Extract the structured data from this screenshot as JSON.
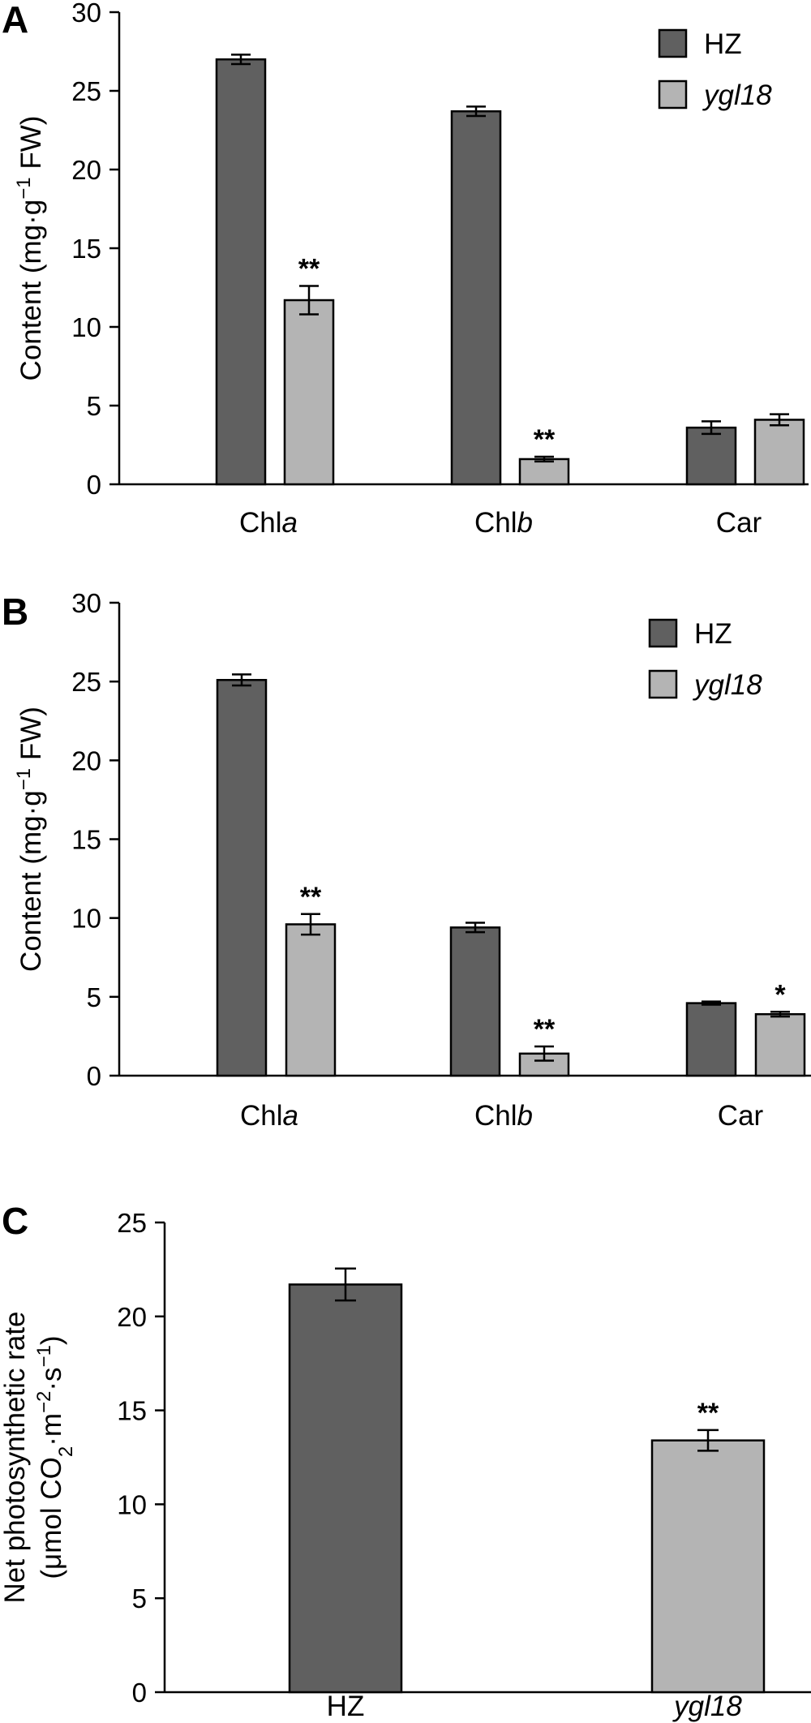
{
  "colors": {
    "HZ": "#606060",
    "ygl18": "#b4b4b4"
  },
  "chart_data": [
    {
      "panel": "A",
      "type": "bar",
      "ylabel": "Content (mg·g⁻¹ FW)",
      "ylabel_parts": [
        "Content (mg·g",
        "−1",
        " FW)"
      ],
      "ylim": [
        0,
        30
      ],
      "yticks": [
        0,
        5,
        10,
        15,
        20,
        25,
        30
      ],
      "categories": [
        "Chla",
        "Chlb",
        "Car"
      ],
      "category_labels": [
        [
          "Chl",
          "a"
        ],
        [
          "Chl",
          "b"
        ],
        [
          "Car",
          ""
        ]
      ],
      "legend_position": "top-right",
      "series": [
        {
          "name": "HZ",
          "values": [
            27.0,
            23.7,
            3.6
          ],
          "errors": [
            0.3,
            0.3,
            0.4
          ],
          "sig": [
            "",
            "",
            ""
          ]
        },
        {
          "name": "ygl18",
          "values": [
            11.7,
            1.6,
            4.1
          ],
          "errors": [
            0.9,
            0.15,
            0.35
          ],
          "sig": [
            "**",
            "**",
            ""
          ]
        }
      ]
    },
    {
      "panel": "B",
      "type": "bar",
      "ylabel": "Content (mg·g⁻¹ FW)",
      "ylabel_parts": [
        "Content (mg·g",
        "−1",
        " FW)"
      ],
      "ylim": [
        0,
        30
      ],
      "yticks": [
        0,
        5,
        10,
        15,
        20,
        25,
        30
      ],
      "categories": [
        "Chla",
        "Chlb",
        "Car"
      ],
      "category_labels": [
        [
          "Chl",
          "a"
        ],
        [
          "Chl",
          "b"
        ],
        [
          "Car",
          ""
        ]
      ],
      "legend_position": "top-right",
      "series": [
        {
          "name": "HZ",
          "values": [
            25.1,
            9.4,
            4.6
          ],
          "errors": [
            0.35,
            0.3,
            0.1
          ],
          "sig": [
            "",
            "",
            ""
          ]
        },
        {
          "name": "ygl18",
          "values": [
            9.6,
            1.4,
            3.9
          ],
          "errors": [
            0.65,
            0.45,
            0.15
          ],
          "sig": [
            "**",
            "**",
            "*"
          ]
        }
      ]
    },
    {
      "panel": "C",
      "type": "bar",
      "ylabel": "Net photosynthetic rate (μmol CO₂·m⁻²·s⁻¹)",
      "ylabel_line1": "Net photosynthetic rate",
      "ylabel_line2_parts": [
        "(μmol CO",
        "2",
        "·m",
        "−2",
        "·s",
        "−1",
        ")"
      ],
      "ylim": [
        0,
        25
      ],
      "yticks": [
        0,
        5,
        10,
        15,
        20,
        25
      ],
      "categories": [
        "HZ",
        "ygl18"
      ],
      "values": [
        21.7,
        13.4
      ],
      "errors": [
        0.85,
        0.55
      ],
      "sig": [
        "",
        "**"
      ]
    }
  ]
}
